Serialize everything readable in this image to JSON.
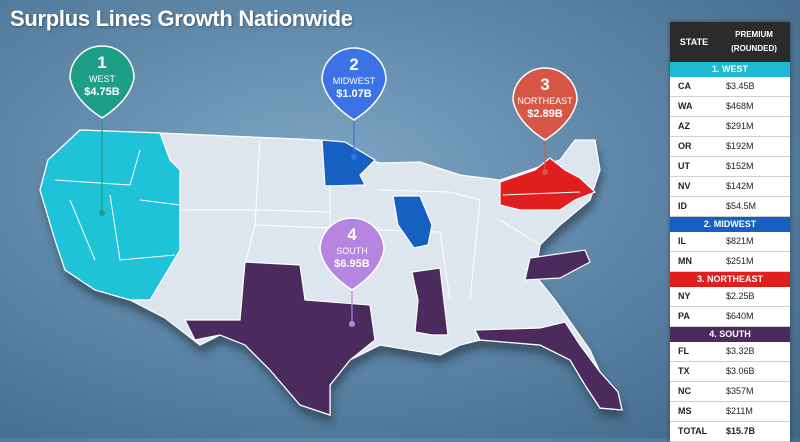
{
  "title": "Surplus Lines Growth Nationwide",
  "colors": {
    "west": "#1fc3d8",
    "midwest": "#1560c0",
    "northeast": "#e01e1e",
    "south": "#4b2a5e",
    "base": "#dde6ee"
  },
  "pins": [
    {
      "num": "1",
      "label": "WEST",
      "value": "$4.75B",
      "color": "#1e9e86"
    },
    {
      "num": "2",
      "label": "MIDWEST",
      "value": "$1.07B",
      "color": "#3b72e6"
    },
    {
      "num": "3",
      "label": "NORTHEAST",
      "value": "$2.89B",
      "color": "#d65745"
    },
    {
      "num": "4",
      "label": "SOUTH",
      "value": "$6.95B",
      "color": "#b585e0"
    }
  ],
  "table": {
    "header_state": "STATE",
    "header_premium_1": "PREMIUM",
    "header_premium_2": "(ROUNDED)",
    "sections": [
      {
        "name": "1. WEST",
        "color": "#1fb9d2",
        "rows": [
          {
            "s": "CA",
            "v": "$3.45B"
          },
          {
            "s": "WA",
            "v": "$468M"
          },
          {
            "s": "AZ",
            "v": "$291M"
          },
          {
            "s": "OR",
            "v": "$192M"
          },
          {
            "s": "UT",
            "v": "$152M"
          },
          {
            "s": "NV",
            "v": "$142M"
          },
          {
            "s": "ID",
            "v": "$54.5M"
          }
        ]
      },
      {
        "name": "2. MIDWEST",
        "color": "#1560c0",
        "rows": [
          {
            "s": "IL",
            "v": "$821M"
          },
          {
            "s": "MN",
            "v": "$251M"
          }
        ]
      },
      {
        "name": "3. NORTHEAST",
        "color": "#e01e1e",
        "rows": [
          {
            "s": "NY",
            "v": "$2.25B"
          },
          {
            "s": "PA",
            "v": "$640M"
          }
        ]
      },
      {
        "name": "4. SOUTH",
        "color": "#4b2a5e",
        "rows": [
          {
            "s": "FL",
            "v": "$3.32B"
          },
          {
            "s": "TX",
            "v": "$3.06B"
          },
          {
            "s": "NC",
            "v": "$357M"
          },
          {
            "s": "MS",
            "v": "$211M"
          }
        ]
      }
    ],
    "total": {
      "s": "TOTAL",
      "v": "$15.7B"
    }
  }
}
